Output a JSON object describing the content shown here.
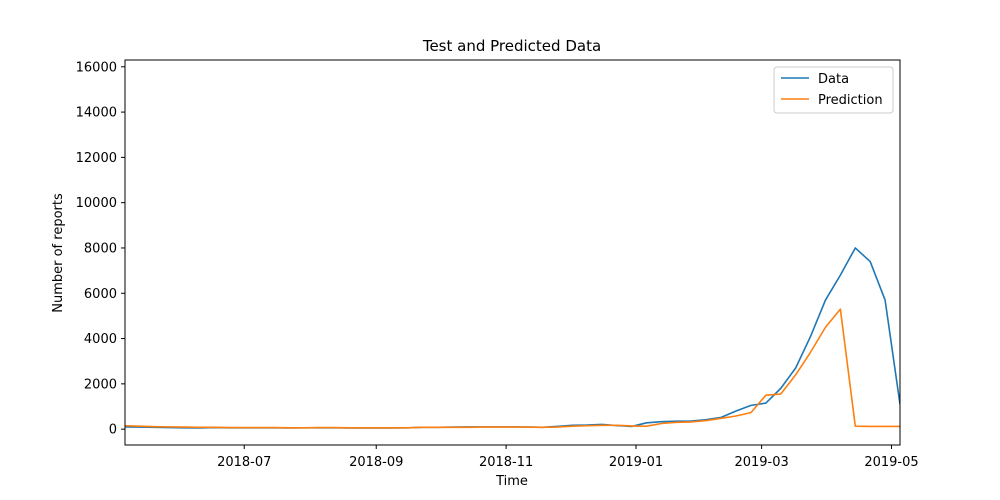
{
  "chart_data": {
    "type": "line",
    "title": "Test and Predicted Data",
    "xlabel": "Time",
    "ylabel": "Number of reports",
    "xlim": [
      "2018-05-06",
      "2019-05-05"
    ],
    "ylim": [
      -700,
      16300
    ],
    "x_ticks": [
      "2018-07",
      "2018-09",
      "2018-11",
      "2019-01",
      "2019-03",
      "2019-05"
    ],
    "y_ticks": [
      0,
      2000,
      4000,
      6000,
      8000,
      10000,
      12000,
      14000,
      16000
    ],
    "grid": false,
    "legend_position": "top-right",
    "x": [
      "2018-05-06",
      "2018-05-13",
      "2018-05-20",
      "2018-05-27",
      "2018-06-03",
      "2018-06-10",
      "2018-06-17",
      "2018-06-24",
      "2018-07-01",
      "2018-07-08",
      "2018-07-15",
      "2018-07-22",
      "2018-07-29",
      "2018-08-05",
      "2018-08-12",
      "2018-08-19",
      "2018-08-26",
      "2018-09-02",
      "2018-09-09",
      "2018-09-16",
      "2018-09-23",
      "2018-09-30",
      "2018-10-07",
      "2018-10-14",
      "2018-10-21",
      "2018-10-28",
      "2018-11-04",
      "2018-11-11",
      "2018-11-18",
      "2018-11-25",
      "2018-12-02",
      "2018-12-09",
      "2018-12-16",
      "2018-12-23",
      "2018-12-30",
      "2019-01-06",
      "2019-01-13",
      "2019-01-20",
      "2019-01-27",
      "2019-02-03",
      "2019-02-10",
      "2019-02-17",
      "2019-02-24",
      "2019-03-03",
      "2019-03-10",
      "2019-03-17",
      "2019-03-24",
      "2019-03-31",
      "2019-04-07",
      "2019-04-14",
      "2019-04-21",
      "2019-04-28",
      "2019-05-05"
    ],
    "series": [
      {
        "name": "Data",
        "color": "#1f77b4",
        "values": [
          100,
          90,
          80,
          70,
          60,
          50,
          70,
          60,
          60,
          60,
          60,
          50,
          60,
          60,
          60,
          50,
          50,
          50,
          50,
          60,
          80,
          80,
          90,
          100,
          100,
          100,
          100,
          90,
          80,
          120,
          170,
          180,
          210,
          160,
          120,
          280,
          330,
          350,
          360,
          420,
          520,
          800,
          1050,
          1150,
          1800,
          2700,
          4100,
          5700,
          6800,
          8000,
          7400,
          5700,
          1100
        ]
      },
      {
        "name": "Prediction",
        "color": "#ff7f0e",
        "values": [
          150,
          130,
          110,
          100,
          90,
          80,
          80,
          70,
          70,
          70,
          70,
          60,
          60,
          70,
          70,
          60,
          60,
          60,
          60,
          60,
          80,
          80,
          80,
          80,
          90,
          90,
          90,
          90,
          80,
          90,
          130,
          150,
          170,
          170,
          140,
          130,
          250,
          300,
          320,
          380,
          480,
          580,
          730,
          1500,
          1550,
          2400,
          3400,
          4500,
          5300,
          130,
          120,
          120,
          120
        ]
      }
    ]
  }
}
